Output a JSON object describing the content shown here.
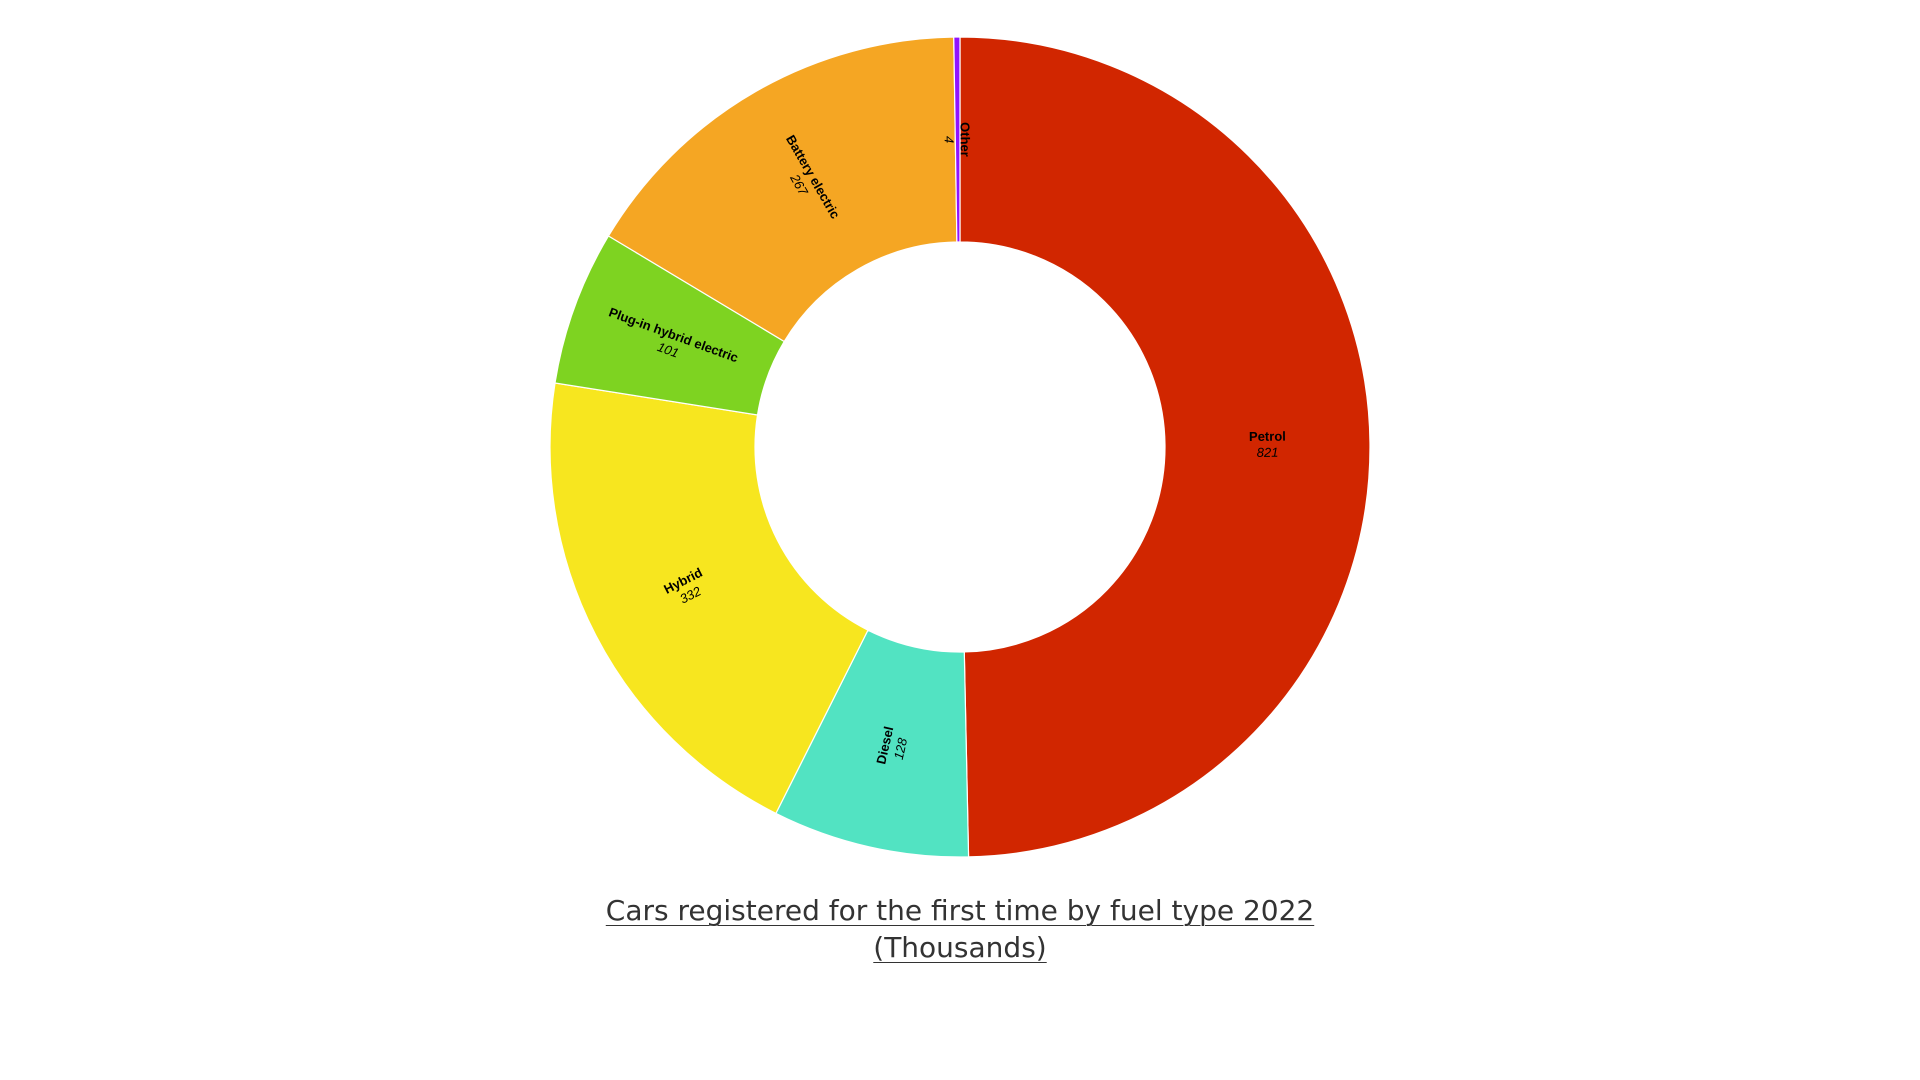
{
  "chart_data": {
    "type": "pie",
    "donut": true,
    "title_line1": "Cars registered for the first time by fuel type 2022",
    "title_line2": "(Thousands)",
    "slices": [
      {
        "label": "Petrol",
        "value": 821,
        "display_value": "821",
        "color": "#d12600"
      },
      {
        "label": "Diesel",
        "value": 128,
        "display_value": "128",
        "color": "#52e3c2"
      },
      {
        "label": "Hybrid",
        "value": 332,
        "display_value": "332",
        "color": "#f7e61f"
      },
      {
        "label": "Plug-in hybrid electric",
        "value": 101,
        "display_value": "101",
        "color": "#7ed321"
      },
      {
        "label": "Battery electric",
        "value": 267,
        "display_value": "267",
        "color": "#f5a623"
      },
      {
        "label": "Other",
        "value": 4,
        "display_value": "4",
        "color": "#9013fe"
      }
    ]
  }
}
